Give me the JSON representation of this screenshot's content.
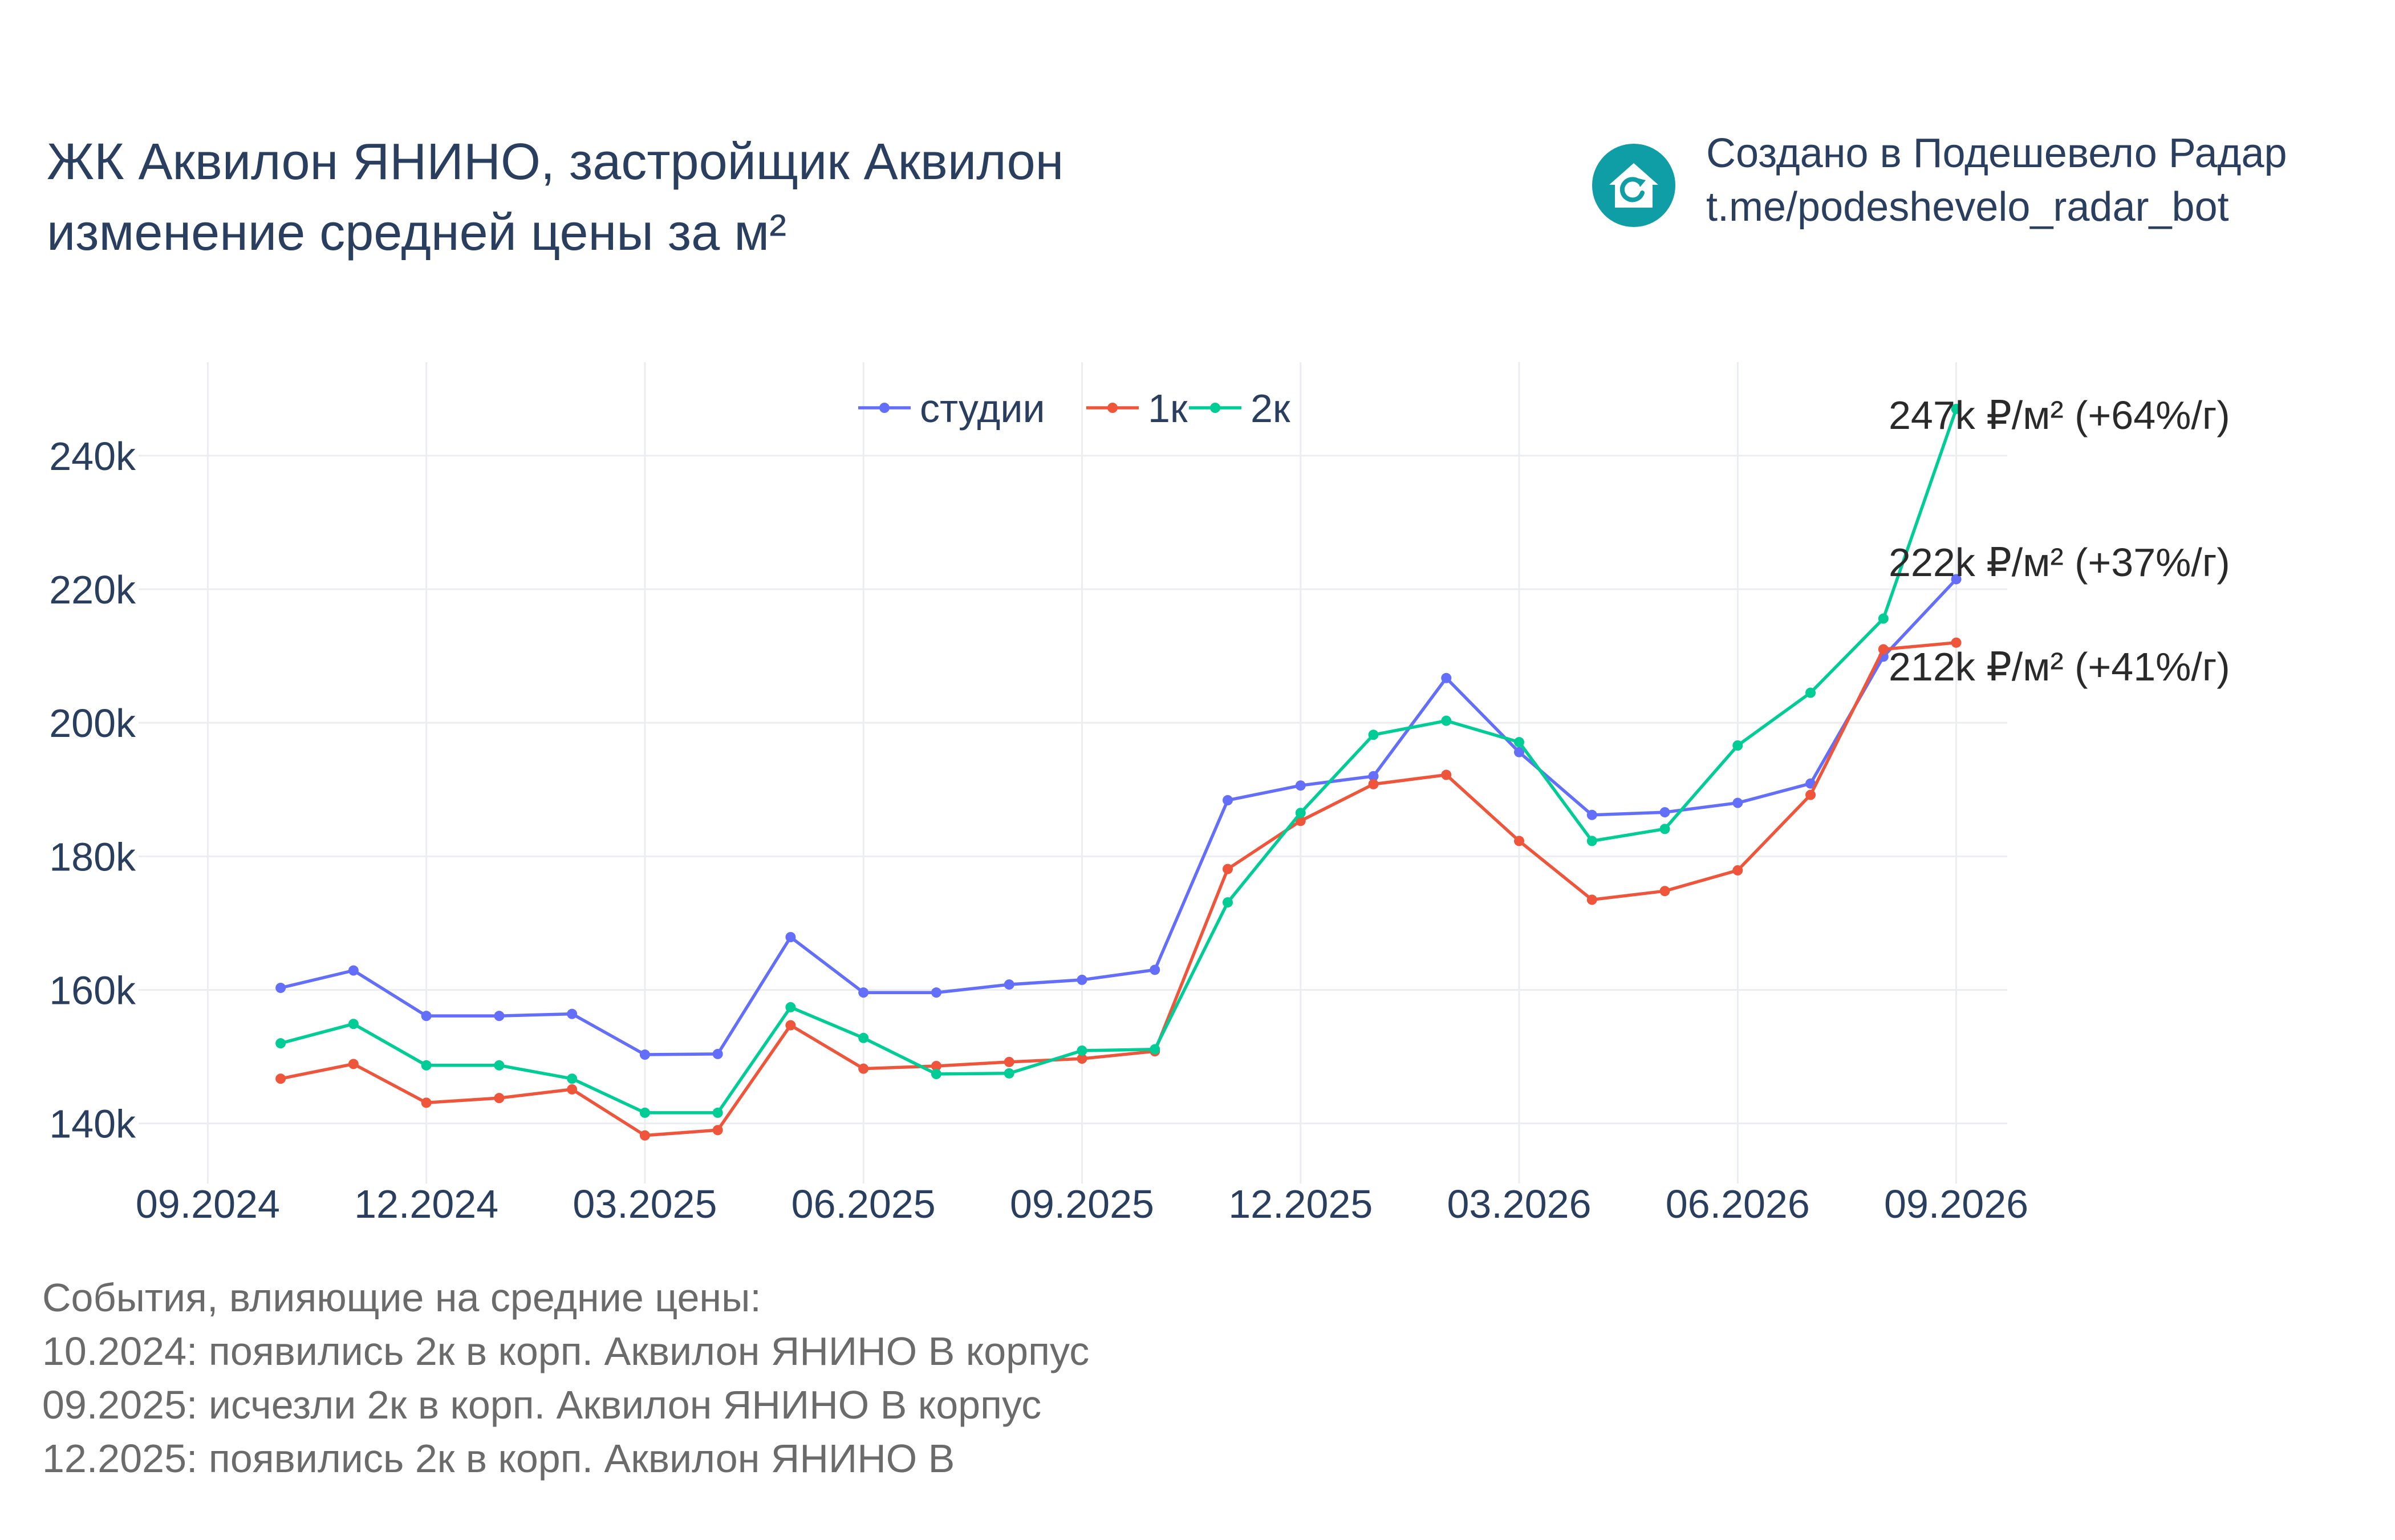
{
  "title": {
    "line1": "ЖК Аквилон ЯНИНО, застройщик Аквилон",
    "line2": "изменение средней цены за м²"
  },
  "brand": {
    "line1": "Создано в Подешевело Радар",
    "line2": "t.me/podeshevelo_radar_bot",
    "logo_icon": "house-refresh-icon",
    "logo_color": "#0f9ea6"
  },
  "events": {
    "heading": "События, влияющие на средние цены:",
    "items": [
      "10.2024: появились 2к в корп. Аквилон ЯНИНО В корпус",
      "09.2025: исчезли 2к в корп. Аквилон ЯНИНО В корпус",
      "12.2025: появились 2к в корп. Аквилон ЯНИНО В"
    ]
  },
  "chart_data": {
    "type": "line",
    "title": "",
    "xlabel": "",
    "ylabel": "",
    "x": [
      "2024-10",
      "2024-11",
      "2024-12",
      "2025-01",
      "2025-02",
      "2025-03",
      "2025-04",
      "2025-05",
      "2025-06",
      "2025-07",
      "2025-08",
      "2025-09",
      "2025-10",
      "2025-11",
      "2025-12",
      "2026-01",
      "2026-02",
      "2026-03",
      "2026-04",
      "2026-05",
      "2026-06",
      "2026-07",
      "2026-08",
      "2026-09"
    ],
    "x_ticks": [
      {
        "x": "2024-09",
        "label": "09.2024"
      },
      {
        "x": "2024-12",
        "label": "12.2024"
      },
      {
        "x": "2025-03",
        "label": "03.2025"
      },
      {
        "x": "2025-06",
        "label": "06.2025"
      },
      {
        "x": "2025-09",
        "label": "09.2025"
      },
      {
        "x": "2025-12",
        "label": "12.2025"
      },
      {
        "x": "2026-03",
        "label": "03.2026"
      },
      {
        "x": "2026-06",
        "label": "06.2026"
      },
      {
        "x": "2026-09",
        "label": "09.2026"
      }
    ],
    "y_ticks": [
      {
        "value": 140000,
        "label": "140k"
      },
      {
        "value": 160000,
        "label": "160k"
      },
      {
        "value": 180000,
        "label": "180k"
      },
      {
        "value": 200000,
        "label": "200k"
      },
      {
        "value": 220000,
        "label": "220k"
      },
      {
        "value": 240000,
        "label": "240k"
      }
    ],
    "ylim": [
      131000,
      254000
    ],
    "grid": true,
    "legend_position": "top-center",
    "series": [
      {
        "name": "студии",
        "color": "#636efa",
        "values": [
          160300,
          162900,
          156100,
          156100,
          156400,
          150300,
          150400,
          167900,
          159600,
          159600,
          160800,
          161500,
          163000,
          188400,
          190600,
          192000,
          206700,
          195600,
          186200,
          186600,
          188000,
          190900,
          209900,
          221500
        ],
        "end_label": "222k ₽/м² (+37%/г)"
      },
      {
        "name": "1к",
        "color": "#ef553b",
        "values": [
          146700,
          148900,
          143100,
          143800,
          145100,
          138200,
          139000,
          154700,
          148200,
          148600,
          149200,
          149700,
          150800,
          178100,
          185300,
          190800,
          192200,
          182300,
          173500,
          174800,
          177900,
          189200,
          211000,
          212000
        ],
        "end_label": "212k ₽/м² (+41%/г)"
      },
      {
        "name": "2к",
        "color": "#00cc96",
        "values": [
          152000,
          154900,
          148700,
          148700,
          146700,
          141600,
          141600,
          157400,
          152800,
          147400,
          147500,
          150900,
          151100,
          173100,
          186500,
          198200,
          200300,
          197100,
          182300,
          184100,
          196600,
          204500,
          215600,
          247000
        ],
        "end_label": "247k ₽/м² (+64%/г)"
      }
    ]
  }
}
